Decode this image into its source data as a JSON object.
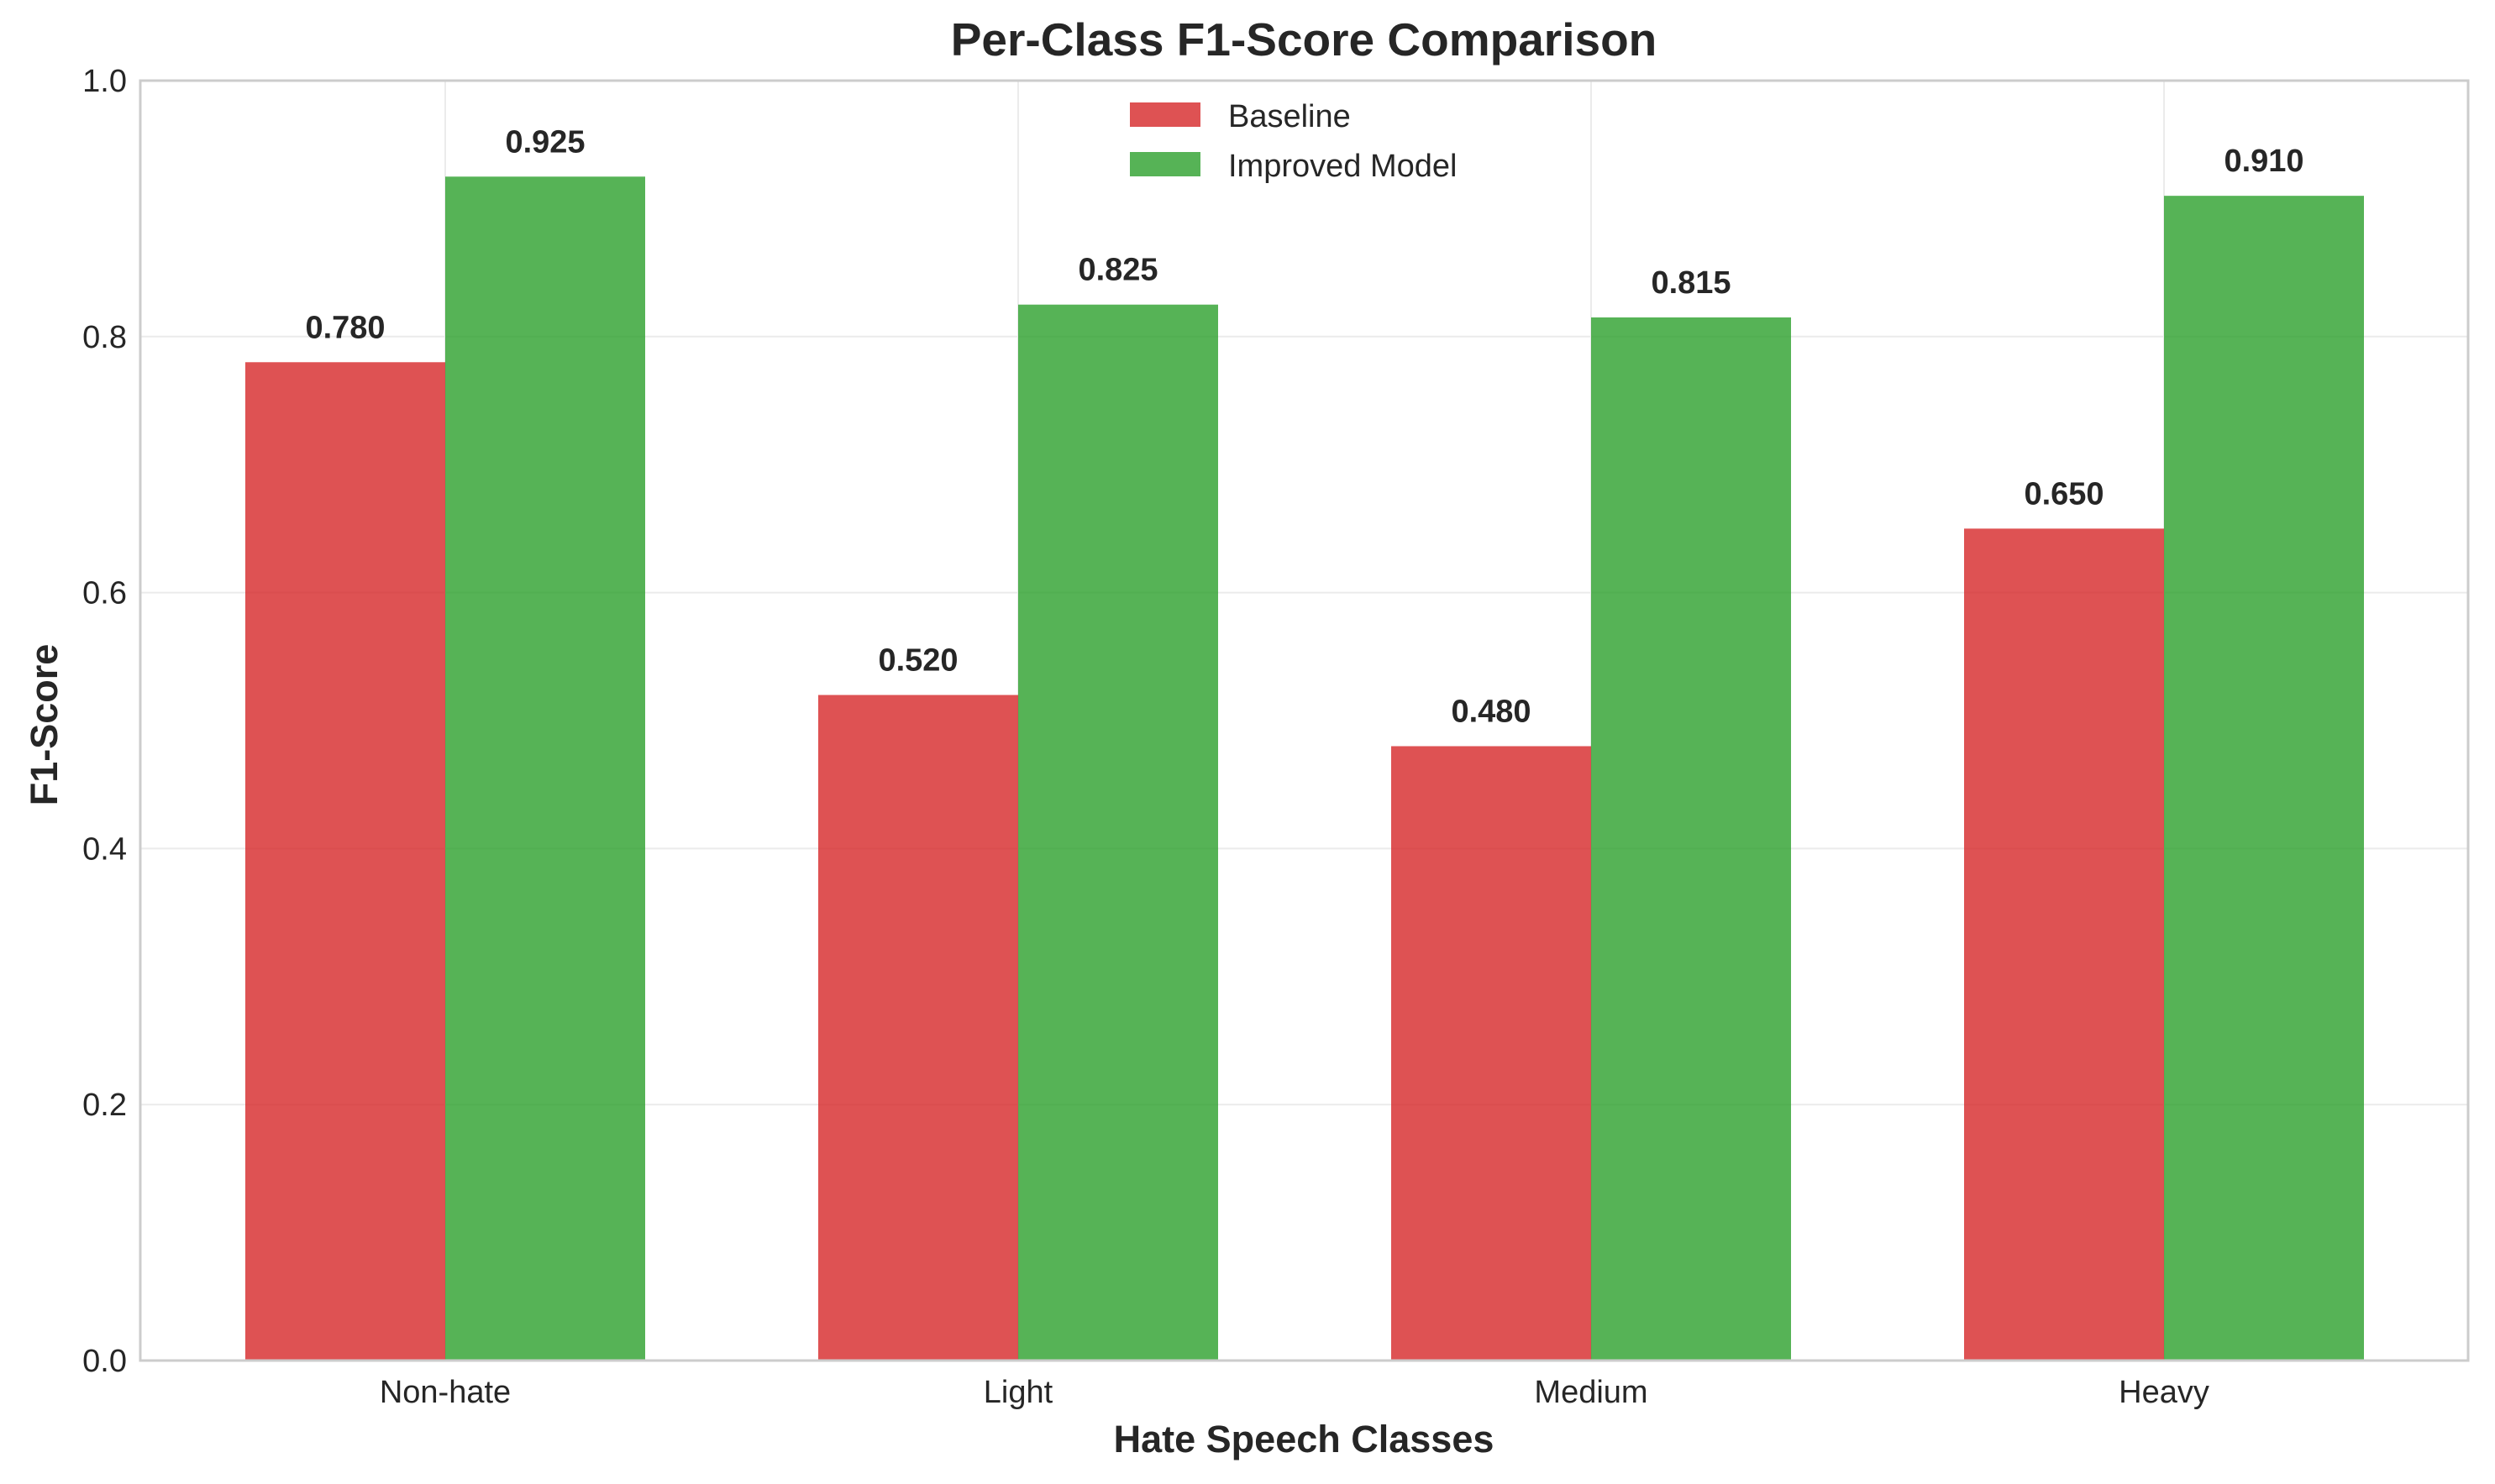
{
  "chart_data": {
    "type": "bar",
    "title": "Per-Class F1-Score Comparison",
    "xlabel": "Hate Speech Classes",
    "ylabel": "F1-Score",
    "categories": [
      "Non-hate",
      "Light",
      "Medium",
      "Heavy"
    ],
    "series": [
      {
        "name": "Baseline",
        "color": "#d62728",
        "values": [
          0.78,
          0.52,
          0.48,
          0.65
        ],
        "labels": [
          "0.780",
          "0.520",
          "0.480",
          "0.650"
        ]
      },
      {
        "name": "Improved Model",
        "color": "#2ca02c",
        "values": [
          0.925,
          0.825,
          0.815,
          0.91
        ],
        "labels": [
          "0.925",
          "0.825",
          "0.815",
          "0.910"
        ]
      }
    ],
    "ylim": [
      0,
      1.0
    ],
    "yticks": [
      0.0,
      0.2,
      0.4,
      0.6,
      0.8,
      1.0
    ],
    "ytick_labels": [
      "0.0",
      "0.2",
      "0.4",
      "0.6",
      "0.8",
      "1.0"
    ],
    "grid": true,
    "legend_position": "upper center"
  }
}
